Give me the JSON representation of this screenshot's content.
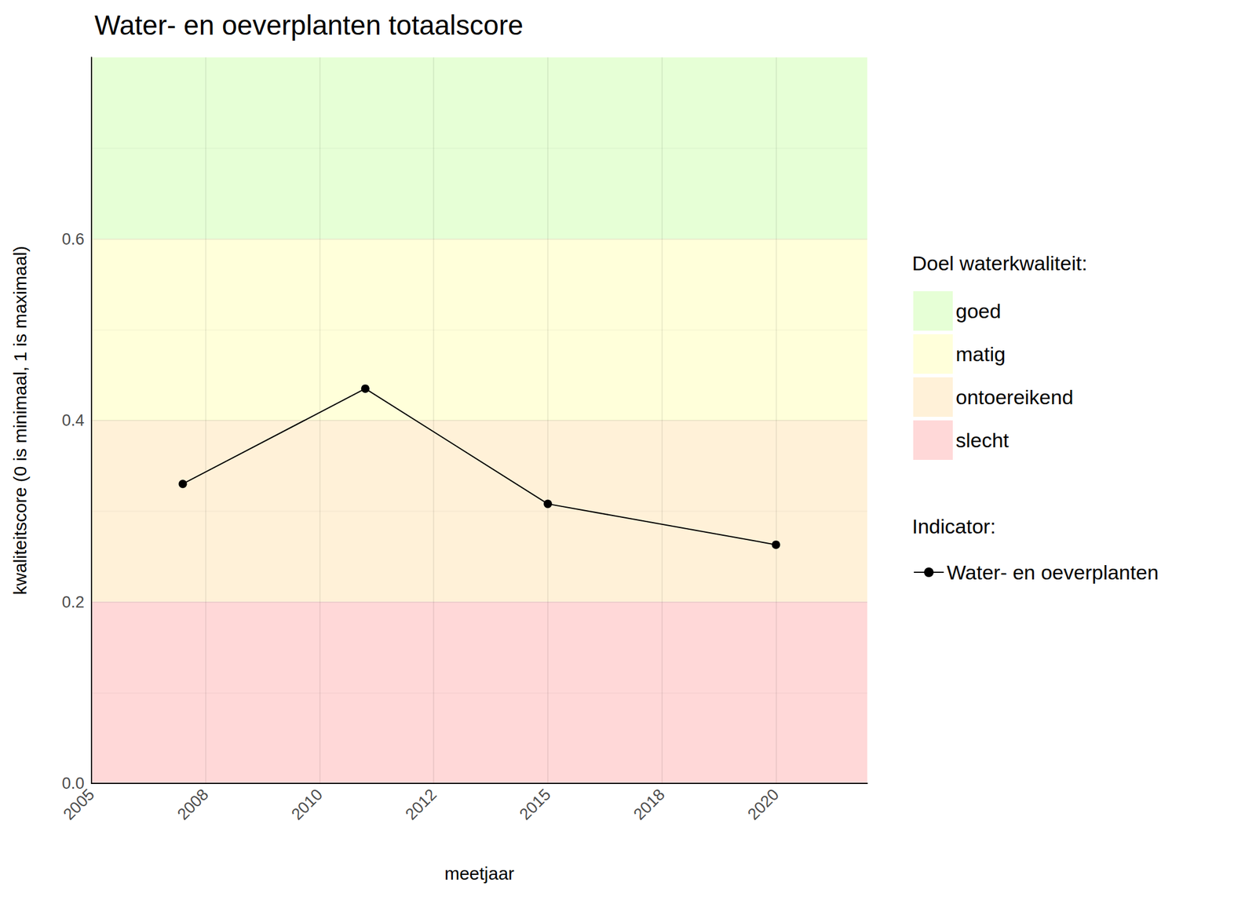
{
  "chart_data": {
    "type": "line",
    "title": "Water- en oeverplanten totaalscore",
    "x_label": "meetjaar",
    "y_label": "kwaliteitscore (0 is minimaal, 1 is maximaal)",
    "x": [
      2007,
      2011,
      2015,
      2020
    ],
    "series": [
      {
        "name": "Water- en oeverplanten",
        "color": "#000000",
        "values": [
          0.33,
          0.435,
          0.308,
          0.263
        ],
        "marker": "circle"
      }
    ],
    "xlim": [
      2005,
      2022
    ],
    "xticks": [
      2005,
      {
        "value": 2007.5,
        "label": "2008"
      },
      2010,
      {
        "value": 2012.5,
        "label": "2012"
      },
      2015,
      {
        "value": 2017.5,
        "label": "2018"
      },
      2020
    ],
    "ylim": [
      0,
      0.8
    ],
    "yticks": [
      {
        "value": 0,
        "label": "0.0"
      },
      0.2,
      0.4,
      0.6
    ],
    "grid": true,
    "bands_title": "Doel waterkwaliteit:",
    "bands": [
      {
        "name": "goed",
        "from": 0.6,
        "to": 0.8,
        "color": "#e6ffd6"
      },
      {
        "name": "matig",
        "from": 0.4,
        "to": 0.6,
        "color": "#ffffda"
      },
      {
        "name": "ontoereikend",
        "from": 0.2,
        "to": 0.4,
        "color": "#fff1d8"
      },
      {
        "name": "slecht",
        "from": 0.0,
        "to": 0.2,
        "color": "#ffd8d8"
      }
    ],
    "series_legend_title": "Indicator:"
  }
}
